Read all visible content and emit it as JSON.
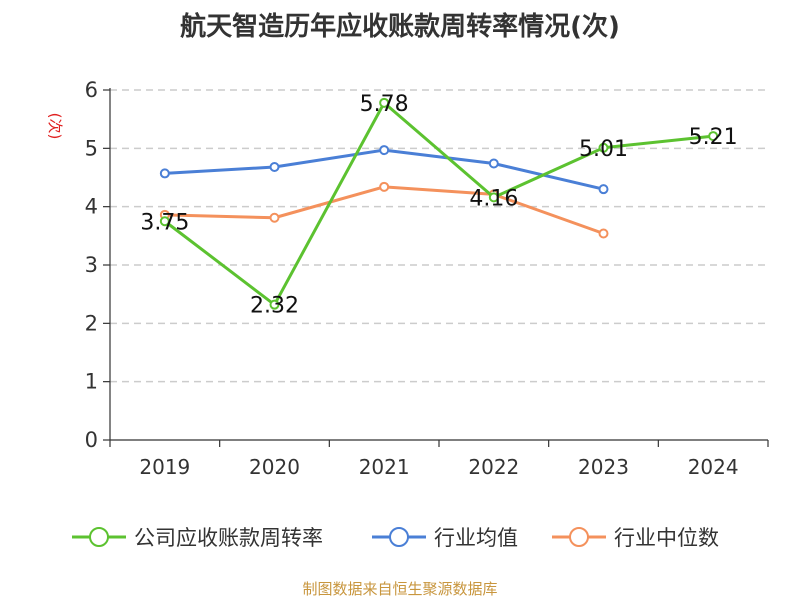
{
  "chart_data": {
    "type": "line",
    "title": "航天智造历年应收账款周转率情况(次)",
    "ylabel": "(次)",
    "xlabel": "",
    "categories": [
      "2019",
      "2020",
      "2021",
      "2022",
      "2023",
      "2024"
    ],
    "ylim": [
      0,
      6
    ],
    "yticks": [
      0,
      1,
      2,
      3,
      4,
      5,
      6
    ],
    "grid": true,
    "legend_position": "bottom",
    "series": [
      {
        "name": "公司应收账款周转率",
        "color": "#5cc230",
        "values": [
          3.75,
          2.32,
          5.78,
          4.16,
          5.01,
          5.21
        ],
        "labels": [
          "3.75",
          "2.32",
          "5.78",
          "4.16",
          "5.01",
          "5.21"
        ]
      },
      {
        "name": "行业均值",
        "color": "#4a7fd6",
        "values": [
          4.57,
          4.68,
          4.97,
          4.74,
          4.3,
          null
        ]
      },
      {
        "name": "行业中位数",
        "color": "#f4915c",
        "values": [
          3.86,
          3.81,
          4.34,
          4.21,
          3.54,
          null
        ]
      }
    ]
  },
  "source": "制图数据来自恒生聚源数据库",
  "colors": {
    "axis": "#333333",
    "grid": "#cccccc",
    "ylabel": "#e02020",
    "source": "#c8963e"
  }
}
